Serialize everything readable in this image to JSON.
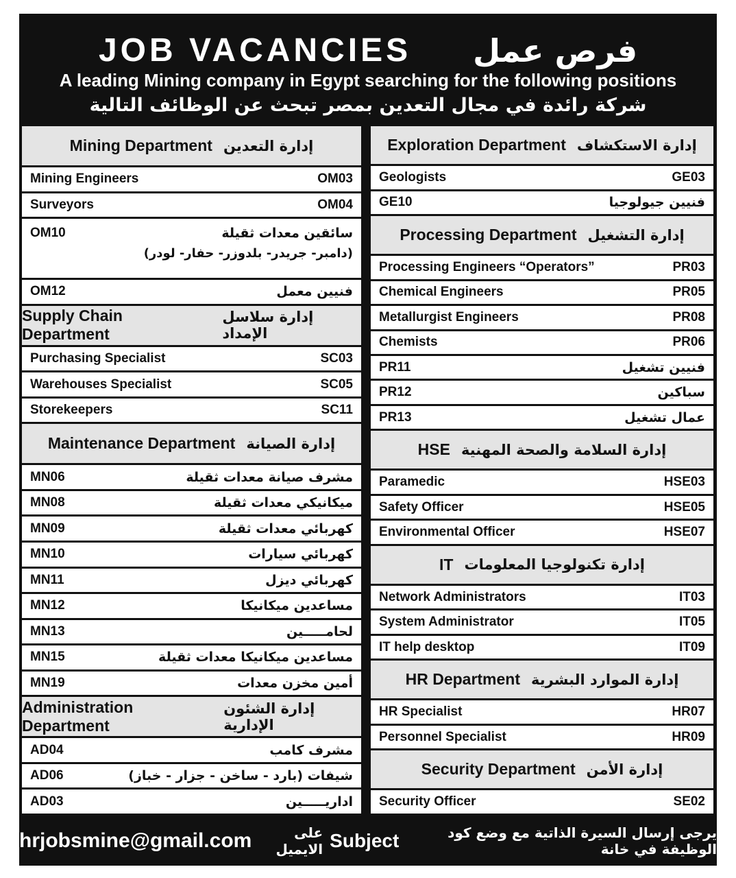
{
  "header": {
    "title_en": "JOB VACANCIES",
    "title_ar": "فرص عمل",
    "subtitle_en": "A leading Mining company in Egypt searching for the following positions",
    "subtitle_ar": "شركة رائدة في مجال التعدين بمصر تبحث عن الوظائف التالية"
  },
  "left_column": {
    "sections": [
      {
        "title_en": "Mining Department",
        "title_ar": "إدارة التعدين",
        "rows": [
          {
            "label": "Mining Engineers",
            "code": "OM03"
          },
          {
            "label": "Surveyors",
            "code": "OM04"
          },
          {
            "label": "سائقين معدات ثقيلة",
            "note": "(دامبر- جريدر- بلدوزر- حفار- لودر)",
            "code": "OM10"
          },
          {
            "label": "فنيين معمل",
            "code": "OM12"
          }
        ]
      },
      {
        "title_en": "Supply Chain Department",
        "title_ar": "إدارة سلاسل الإمداد",
        "rows": [
          {
            "label": "Purchasing Specialist",
            "code": "SC03"
          },
          {
            "label": "Warehouses Specialist",
            "code": "SC05"
          },
          {
            "label": "Storekeepers",
            "code": "SC11"
          }
        ]
      },
      {
        "title_en": "Maintenance Department",
        "title_ar": "إدارة الصيانة",
        "rows": [
          {
            "label": "مشرف صيانة معدات ثقيلة",
            "code": "MN06"
          },
          {
            "label": "ميكانيكي معدات ثقيلة",
            "code": "MN08"
          },
          {
            "label": "كهربائي معدات ثقيلة",
            "code": "MN09"
          },
          {
            "label": "كهربائي سيارات",
            "code": "MN10"
          },
          {
            "label": "كهربائي ديزل",
            "code": "MN11"
          },
          {
            "label": "مساعدين ميكانيكا",
            "code": "MN12"
          },
          {
            "label": "لحامـــــين",
            "code": "MN13"
          },
          {
            "label": "مساعدين ميكانيكا معدات ثقيلة",
            "code": "MN15"
          },
          {
            "label": "أمين مخزن معدات",
            "code": "MN19"
          }
        ]
      },
      {
        "title_en": "Administration Department",
        "title_ar": "إدارة الشئون الإدارية",
        "rows": [
          {
            "label": "مشرف كامب",
            "code": "AD04"
          },
          {
            "label": "شيفات (بارد - ساخن - جزار - خباز)",
            "code": "AD06"
          },
          {
            "label": "اداريـــــين",
            "code": "AD03"
          }
        ]
      }
    ]
  },
  "right_column": {
    "sections": [
      {
        "title_en": "Exploration Department",
        "title_ar": "إدارة الاستكشاف",
        "rows": [
          {
            "label": "Geologists",
            "code": "GE03"
          },
          {
            "label": "فنيين جيولوجيا",
            "code": "GE10"
          }
        ]
      },
      {
        "title_en": "Processing Department",
        "title_ar": "إدارة التشغيل",
        "rows": [
          {
            "label": "Processing Engineers “Operators”",
            "code": "PR03"
          },
          {
            "label": "Chemical Engineers",
            "code": "PR05"
          },
          {
            "label": "Metallurgist Engineers",
            "code": "PR08"
          },
          {
            "label": "Chemists",
            "code": "PR06"
          },
          {
            "label": "فنيين تشغيل",
            "code": "PR11"
          },
          {
            "label": "سباكين",
            "code": "PR12"
          },
          {
            "label": "عمال تشغيل",
            "code": "PR13"
          }
        ]
      },
      {
        "title_en": "HSE",
        "title_ar": "إدارة السلامة والصحة المهنية",
        "rows": [
          {
            "label": "Paramedic",
            "code": "HSE03"
          },
          {
            "label": "Safety Officer",
            "code": "HSE05"
          },
          {
            "label": "Environmental Officer",
            "code": "HSE07"
          }
        ]
      },
      {
        "title_en": "IT",
        "title_ar": "إدارة تكنولوجيا المعلومات",
        "rows": [
          {
            "label": "Network Administrators",
            "code": "IT03"
          },
          {
            "label": "System Administrator",
            "code": "IT05"
          },
          {
            "label": "IT help desktop",
            "code": "IT09"
          }
        ]
      },
      {
        "title_en": "HR Department",
        "title_ar": "إدارة الموارد البشرية",
        "rows": [
          {
            "label": "HR Specialist",
            "code": "HR07"
          },
          {
            "label": "Personnel Specialist",
            "code": "HR09"
          }
        ]
      },
      {
        "title_en": "Security Department",
        "title_ar": "إدارة الأمن",
        "rows": [
          {
            "label": "Security Officer",
            "code": "SE02"
          }
        ]
      }
    ]
  },
  "footer": {
    "text_ar_1": "يرجى إرسال السيرة الذاتية مع وضع كود الوظيفة في خانة",
    "keyword": "Subject",
    "text_ar_2": "على الايميل",
    "email": "hrjobsmine@gmail.com"
  }
}
